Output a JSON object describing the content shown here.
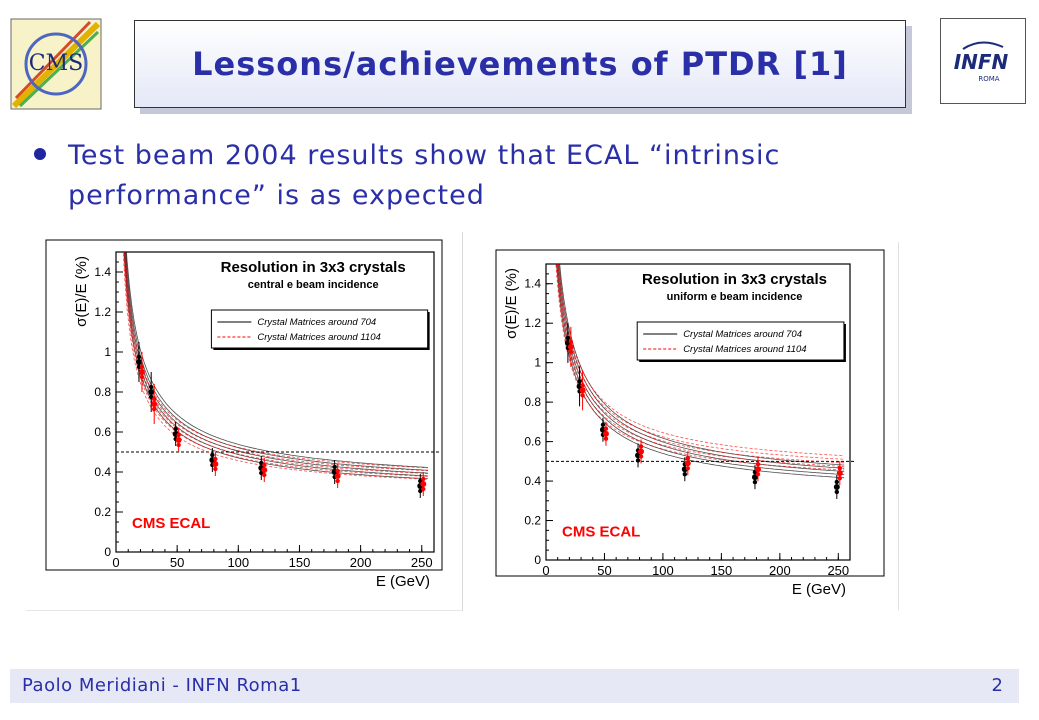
{
  "slide": {
    "title": "Lessons/achievements of PTDR [1]",
    "bullet": "Test beam 2004 results show that ECAL “intrinsic performance” is as expected",
    "footer_left": "Paolo Meridiani  - INFN Roma1",
    "page_number": "2",
    "logos": {
      "left_text": "CMS",
      "right_text": "INFN",
      "right_subtext": "ROMA"
    }
  },
  "colors": {
    "accent": "#2a2fa8",
    "series_black": "#000000",
    "series_red": "#ff0000",
    "footer_bg": "#e6e8f5"
  },
  "chart_data": [
    {
      "type": "scatter",
      "title": "Resolution in 3x3 crystals",
      "subtitle": "central e beam incidence",
      "xlabel": "E (GeV)",
      "ylabel": "σ(E)/E (%)",
      "xlim": [
        0,
        260
      ],
      "ylim": [
        0,
        1.5
      ],
      "xticks": [
        0,
        50,
        100,
        150,
        200,
        250
      ],
      "yticks": [
        0,
        0.2,
        0.4,
        0.6,
        0.8,
        1,
        1.2,
        1.4
      ],
      "reference_line_y": 0.5,
      "annotation": "CMS ECAL",
      "grid": false,
      "legend_position": "top-right",
      "series": [
        {
          "name": "Crystal Matrices around 704",
          "color": "#000000",
          "x": [
            20,
            30,
            50,
            80,
            120,
            180,
            250
          ],
          "y": [
            0.95,
            0.8,
            0.59,
            0.46,
            0.42,
            0.4,
            0.33
          ]
        },
        {
          "name": "Crystal Matrices around 1104",
          "color": "#ff0000",
          "x": [
            20,
            30,
            50,
            80,
            120,
            180,
            250
          ],
          "y": [
            0.9,
            0.74,
            0.56,
            0.44,
            0.41,
            0.38,
            0.34
          ]
        }
      ]
    },
    {
      "type": "scatter",
      "title": "Resolution in 3x3 crystals",
      "subtitle": "uniform e beam incidence",
      "xlabel": "E (GeV)",
      "ylabel": "σ(E)/E (%)",
      "xlim": [
        0,
        260
      ],
      "ylim": [
        0,
        1.5
      ],
      "xticks": [
        0,
        50,
        100,
        150,
        200,
        250
      ],
      "yticks": [
        0,
        0.2,
        0.4,
        0.6,
        0.8,
        1,
        1.2,
        1.4
      ],
      "reference_line_y": 0.5,
      "annotation": "CMS ECAL",
      "grid": false,
      "legend_position": "top-right",
      "series": [
        {
          "name": "Crystal Matrices around 704",
          "color": "#000000",
          "x": [
            20,
            30,
            50,
            80,
            120,
            180,
            250
          ],
          "y": [
            1.1,
            0.88,
            0.66,
            0.53,
            0.46,
            0.42,
            0.37
          ]
        },
        {
          "name": "Crystal Matrices around 1104",
          "color": "#ff0000",
          "x": [
            20,
            30,
            50,
            80,
            120,
            180,
            250
          ],
          "y": [
            1.08,
            0.86,
            0.64,
            0.55,
            0.49,
            0.46,
            0.44
          ]
        }
      ]
    }
  ]
}
